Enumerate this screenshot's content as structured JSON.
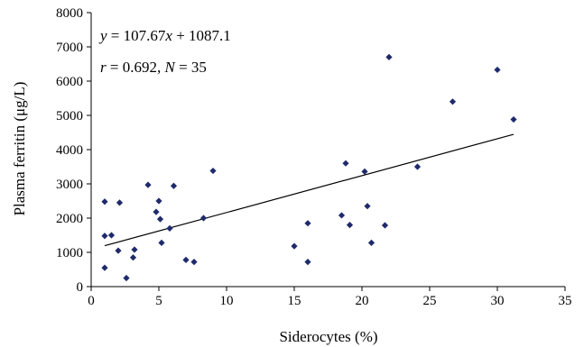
{
  "chart_data": {
    "type": "scatter",
    "xlabel": "Siderocytes (%)",
    "ylabel": "Plasma ferritin (μg/L)",
    "xlim": [
      0,
      35
    ],
    "ylim": [
      0,
      8000
    ],
    "xticks": [
      0,
      5,
      10,
      15,
      20,
      25,
      30,
      35
    ],
    "yticks": [
      0,
      1000,
      2000,
      3000,
      4000,
      5000,
      6000,
      7000,
      8000
    ],
    "grid": false,
    "marker": "diamond",
    "marker_color": "#1f2a6b",
    "annotations": [
      "y = 107.67x + 1087.1",
      "r = 0.692, N = 35"
    ],
    "trendline": {
      "slope": 107.67,
      "intercept": 1087.1,
      "x_range": [
        1,
        31.2
      ]
    },
    "points": [
      [
        1,
        550
      ],
      [
        1,
        2480
      ],
      [
        1,
        1480
      ],
      [
        1.5,
        1500
      ],
      [
        2,
        1050
      ],
      [
        2.1,
        2450
      ],
      [
        2.6,
        250
      ],
      [
        3.1,
        850
      ],
      [
        3.2,
        1080
      ],
      [
        4.2,
        2970
      ],
      [
        4.8,
        2180
      ],
      [
        5,
        2500
      ],
      [
        5.1,
        1970
      ],
      [
        5.2,
        1280
      ],
      [
        5.8,
        1700
      ],
      [
        6.1,
        2940
      ],
      [
        7,
        780
      ],
      [
        7.6,
        720
      ],
      [
        8.3,
        2000
      ],
      [
        9,
        3380
      ],
      [
        15,
        1180
      ],
      [
        16,
        1850
      ],
      [
        16,
        720
      ],
      [
        18.5,
        2080
      ],
      [
        18.8,
        3600
      ],
      [
        19.1,
        1800
      ],
      [
        20.2,
        3360
      ],
      [
        20.4,
        2350
      ],
      [
        20.7,
        1280
      ],
      [
        21.7,
        1790
      ],
      [
        22,
        6700
      ],
      [
        24.1,
        3500
      ],
      [
        26.7,
        5400
      ],
      [
        30,
        6330
      ],
      [
        31.2,
        4880
      ]
    ]
  }
}
